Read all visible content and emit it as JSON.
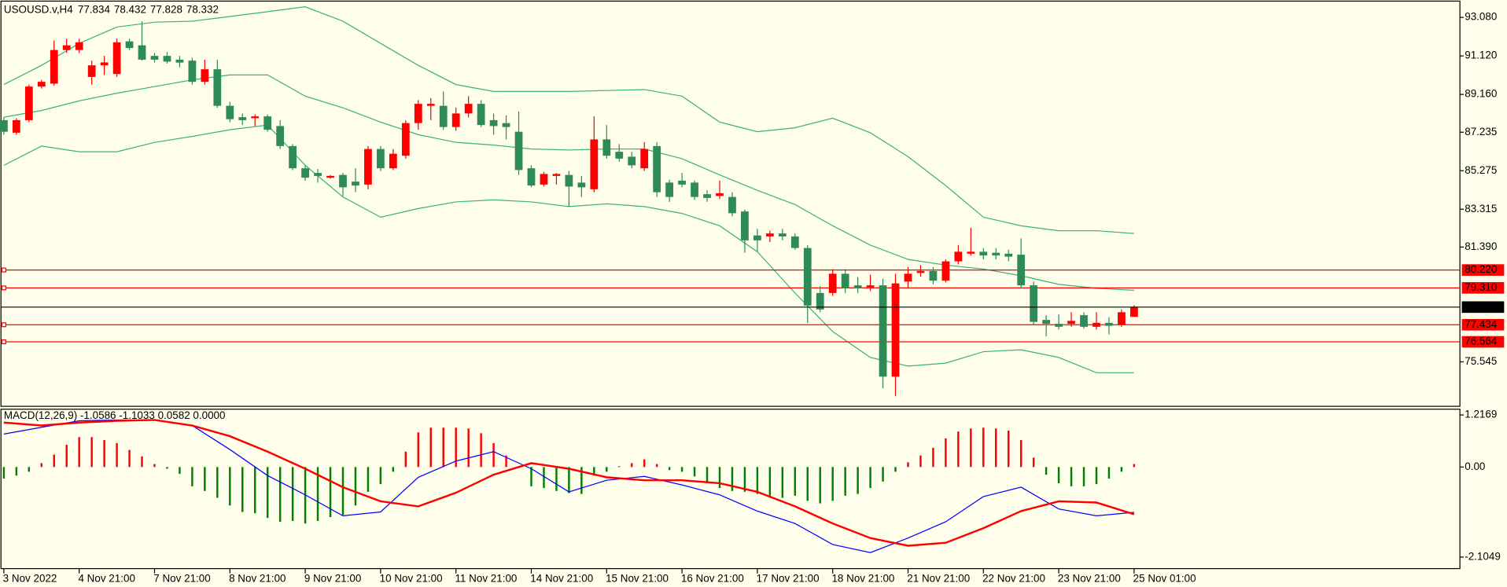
{
  "chart_data": [
    {
      "type": "candlestick",
      "title": "USOUSD.v,H4",
      "categories": [
        "3 Nov 2022",
        null,
        null,
        null,
        null,
        null,
        "4 Nov 21:00",
        null,
        null,
        null,
        null,
        null,
        "7 Nov 21:00",
        null,
        null,
        null,
        null,
        null,
        "8 Nov 21:00",
        null,
        null,
        null,
        null,
        null,
        "9 Nov 21:00",
        null,
        null,
        null,
        null,
        null,
        "10 Nov 21:00",
        null,
        null,
        null,
        null,
        null,
        "11 Nov 21:00",
        null,
        null,
        null,
        null,
        null,
        "14 Nov 21:00",
        null,
        null,
        null,
        null,
        null,
        "15 Nov 21:00",
        null,
        null,
        null,
        null,
        null,
        "16 Nov 21:00",
        null,
        null,
        null,
        null,
        null,
        "17 Nov 21:00",
        null,
        null,
        null,
        null,
        null,
        "18 Nov 21:00",
        null,
        null,
        null,
        null,
        null,
        "21 Nov 21:00",
        null,
        null,
        null,
        null,
        null,
        "22 Nov 21:00",
        null,
        null,
        null,
        null,
        null,
        "23 Nov 21:00",
        null,
        null,
        null,
        null,
        null,
        "25 Nov 01:00"
      ],
      "open": [
        87.85,
        87.21,
        87.85,
        89.56,
        89.71,
        91.42,
        91.42,
        90.05,
        90.64,
        90.2,
        91.86,
        91.66,
        91.12,
        91.12,
        90.93,
        90.88,
        89.8,
        90.44,
        88.58,
        88.0,
        87.95,
        88.04,
        87.55,
        86.53,
        85.4,
        85.16,
        84.92,
        85.06,
        84.72,
        84.57,
        86.38,
        85.4,
        86.04,
        87.7,
        88.58,
        88.58,
        87.5,
        88.19,
        88.68,
        87.85,
        87.7,
        87.26,
        85.4,
        84.57,
        85.01,
        85.06,
        84.67,
        84.33,
        86.87,
        86.24,
        85.99,
        85.4,
        86.53,
        84.67,
        84.77,
        84.67,
        84.08,
        83.99,
        83.94,
        83.2,
        81.98,
        81.93,
        82.08,
        81.93,
        81.34,
        79.05,
        79.05,
        80.03,
        79.44,
        79.34,
        79.44,
        74.79,
        79.63,
        80.07,
        80.17,
        79.68,
        80.66,
        81.05,
        81.15,
        81.1,
        81.05,
        81.0,
        79.44,
        77.68,
        77.48,
        77.48,
        77.92,
        77.33,
        77.53,
        77.43,
        77.834
      ],
      "high": [
        88.0,
        87.95,
        89.66,
        89.9,
        91.91,
        92.0,
        92.0,
        90.88,
        91.12,
        92.0,
        92.0,
        92.88,
        91.27,
        91.32,
        91.12,
        91.03,
        90.93,
        90.93,
        88.78,
        88.19,
        88.14,
        88.14,
        87.85,
        86.63,
        85.55,
        85.36,
        85.06,
        85.16,
        85.4,
        86.53,
        86.53,
        86.38,
        87.85,
        88.87,
        88.97,
        89.31,
        88.48,
        89.07,
        88.87,
        88.19,
        88.09,
        88.29,
        85.55,
        85.21,
        85.16,
        85.26,
        85.01,
        88.04,
        87.6,
        86.63,
        86.24,
        86.73,
        86.73,
        84.82,
        85.16,
        84.77,
        84.28,
        84.77,
        84.18,
        83.3,
        82.32,
        82.22,
        82.32,
        82.08,
        81.49,
        79.39,
        80.27,
        80.27,
        79.86,
        79.98,
        79.78,
        80.03,
        80.37,
        80.47,
        80.37,
        80.76,
        81.49,
        82.37,
        81.34,
        81.34,
        81.25,
        81.83,
        79.63,
        77.92,
        77.97,
        78.07,
        78.07,
        78.07,
        77.82,
        78.21,
        78.432
      ],
      "low": [
        87.11,
        87.11,
        87.75,
        89.46,
        89.61,
        91.27,
        91.27,
        89.66,
        90.15,
        90.05,
        91.42,
        90.88,
        90.78,
        90.73,
        90.54,
        89.66,
        89.66,
        88.48,
        87.75,
        87.6,
        87.55,
        87.26,
        86.38,
        85.31,
        84.77,
        84.67,
        84.87,
        83.99,
        84.18,
        84.33,
        85.26,
        85.31,
        85.89,
        87.36,
        87.85,
        87.36,
        87.31,
        87.99,
        87.5,
        87.11,
        86.87,
        85.06,
        84.43,
        84.47,
        84.57,
        83.45,
        83.94,
        84.18,
        85.89,
        85.74,
        85.4,
        85.26,
        83.94,
        83.69,
        84.43,
        83.79,
        83.69,
        83.84,
        82.96,
        81.1,
        81.15,
        81.64,
        81.73,
        81.25,
        77.53,
        78.07,
        78.9,
        79.05,
        79.05,
        79.15,
        74.2,
        73.81,
        79.29,
        79.88,
        79.49,
        79.59,
        80.51,
        80.96,
        80.76,
        80.76,
        80.66,
        79.29,
        77.43,
        76.85,
        77.19,
        77.33,
        77.24,
        77.19,
        76.94,
        77.33,
        77.828
      ],
      "close": [
        87.26,
        87.85,
        89.56,
        89.8,
        91.42,
        91.66,
        91.81,
        90.64,
        90.79,
        91.81,
        91.52,
        90.93,
        90.93,
        90.83,
        90.78,
        89.8,
        90.44,
        88.58,
        87.9,
        87.85,
        88.04,
        87.36,
        86.53,
        85.4,
        84.92,
        85.01,
        85.01,
        84.43,
        84.52,
        86.38,
        85.4,
        86.14,
        87.7,
        88.68,
        88.68,
        87.5,
        88.19,
        88.68,
        87.6,
        87.55,
        87.5,
        85.31,
        84.52,
        85.11,
        85.11,
        84.47,
        84.43,
        86.87,
        86.04,
        85.89,
        85.55,
        86.38,
        84.18,
        83.94,
        84.57,
        83.94,
        83.89,
        84.13,
        83.11,
        81.73,
        81.73,
        82.08,
        81.93,
        81.34,
        78.41,
        78.21,
        80.03,
        79.29,
        79.29,
        79.44,
        74.79,
        79.54,
        80.03,
        80.17,
        79.68,
        80.66,
        81.15,
        81.15,
        80.96,
        80.96,
        80.9,
        79.44,
        77.58,
        77.48,
        77.33,
        77.63,
        77.33,
        77.53,
        77.38,
        78.07,
        78.332
      ],
      "up_color": "#ff0000",
      "down_color": "#2e8b57",
      "x": [
        0,
        3,
        6,
        9,
        12,
        15,
        18,
        21,
        24,
        27,
        30,
        33,
        36,
        39,
        42,
        45,
        48,
        51,
        54,
        57,
        60,
        63,
        66,
        69,
        72,
        75,
        78,
        81,
        84,
        87,
        90
      ],
      "series": [
        {
          "color": "#3cb371",
          "values": [
            89.66,
            90.64,
            91.76,
            92.59,
            92.84,
            92.89,
            93.13,
            93.37,
            93.62,
            92.89,
            91.76,
            90.64,
            89.66,
            89.31,
            89.31,
            89.31,
            89.36,
            89.41,
            89.07,
            87.75,
            87.26,
            87.46,
            87.95,
            87.21,
            85.99,
            84.52,
            82.91,
            82.47,
            82.22,
            82.22,
            82.08
          ]
        },
        {
          "color": "#3cb371",
          "values": [
            88.0,
            88.34,
            88.83,
            89.22,
            89.56,
            89.9,
            90.15,
            90.15,
            89.07,
            88.48,
            87.75,
            87.11,
            86.72,
            86.58,
            86.38,
            86.33,
            86.38,
            86.38,
            85.89,
            85.06,
            84.28,
            83.55,
            82.47,
            81.49,
            80.76,
            80.47,
            80.27,
            79.93,
            79.49,
            79.29,
            79.19
          ]
        },
        {
          "color": "#3cb371",
          "values": [
            85.55,
            86.53,
            86.24,
            86.24,
            86.72,
            87.02,
            87.36,
            87.6,
            85.55,
            83.94,
            82.91,
            83.35,
            83.69,
            83.79,
            83.69,
            83.45,
            83.59,
            83.45,
            83.1,
            82.47,
            81.15,
            79.05,
            77.09,
            75.77,
            75.33,
            75.48,
            76.06,
            76.16,
            75.77,
            74.99,
            74.99
          ]
        }
      ],
      "hlines": [
        {
          "value": 80.22,
          "label": "80.220"
        },
        {
          "value": 79.31,
          "label": "79.310"
        },
        77.434,
        76.564
      ],
      "hline_color": "#ff0000",
      "ylim": [
        73.28,
        93.91
      ],
      "yticks": [
        {
          "value": 93.08,
          "label": "93.080"
        },
        {
          "value": 91.12,
          "label": "91.120"
        },
        {
          "value": 89.16,
          "label": "89.160"
        },
        87.235,
        85.275,
        83.315,
        {
          "value": 81.39,
          "label": "81.390"
        },
        75.545
      ],
      "grid": false
    },
    {
      "type": "macd",
      "title": "MACD(12,26,9) -1.0586 -1.1033 0.0582 0.0000",
      "x": [
        0,
        3,
        6,
        9,
        12,
        15,
        18,
        21,
        24,
        27,
        30,
        33,
        36,
        39,
        42,
        45,
        48,
        51,
        54,
        57,
        60,
        63,
        66,
        69,
        72,
        75,
        78,
        81,
        84,
        87,
        90
      ],
      "series": [
        {
          "color": "#0000ff",
          "values": [
            0.77,
            0.93,
            1.08,
            1.1,
            1.1,
            0.97,
            0.41,
            -0.2,
            -0.65,
            -1.14,
            -1.05,
            -0.24,
            0.14,
            0.36,
            -0.04,
            -0.58,
            -0.31,
            -0.22,
            -0.42,
            -0.65,
            -1.03,
            -1.32,
            -1.81,
            -2.0,
            -1.66,
            -1.28,
            -0.69,
            -0.47,
            -0.98,
            -1.14,
            -1.0586
          ]
        },
        {
          "color": "#ff0000",
          "values": [
            1.04,
            0.97,
            1.04,
            1.08,
            1.1,
            0.97,
            0.72,
            0.36,
            -0.04,
            -0.47,
            -0.8,
            -0.92,
            -0.6,
            -0.18,
            0.09,
            -0.04,
            -0.24,
            -0.31,
            -0.31,
            -0.38,
            -0.58,
            -0.92,
            -1.32,
            -1.66,
            -1.84,
            -1.77,
            -1.43,
            -1.03,
            -0.8,
            -0.83,
            -1.1033
          ]
        }
      ],
      "histogram": {
        "values": [
          -0.27,
          -0.2,
          -0.11,
          0.09,
          0.29,
          0.52,
          0.7,
          0.7,
          0.63,
          0.56,
          0.4,
          0.25,
          0.07,
          -0.04,
          -0.16,
          -0.45,
          -0.56,
          -0.72,
          -0.9,
          -1.05,
          -1.08,
          -1.19,
          -1.28,
          -1.26,
          -1.32,
          -1.26,
          -1.17,
          -1.12,
          -0.9,
          -0.58,
          -0.4,
          -0.11,
          0.36,
          0.81,
          0.92,
          0.92,
          0.92,
          0.9,
          0.79,
          0.56,
          0.27,
          0.02,
          -0.45,
          -0.49,
          -0.56,
          -0.61,
          -0.63,
          -0.2,
          -0.11,
          0.02,
          0.09,
          0.18,
          0.07,
          -0.07,
          -0.11,
          -0.22,
          -0.34,
          -0.49,
          -0.56,
          -0.58,
          -0.63,
          -0.67,
          -0.72,
          -0.67,
          -0.79,
          -0.85,
          -0.79,
          -0.67,
          -0.63,
          -0.49,
          -0.34,
          -0.11,
          0.11,
          0.27,
          0.45,
          0.67,
          0.83,
          0.9,
          0.92,
          0.9,
          0.85,
          0.63,
          0.22,
          -0.18,
          -0.38,
          -0.45,
          -0.45,
          -0.4,
          -0.27,
          -0.11,
          0.07
        ],
        "up_color": "#ff0000",
        "down_color": "#008000"
      },
      "ylim": [
        -2.1049,
        1.2169
      ],
      "yticks": [
        1.2169,
        {
          "value": 0,
          "label": "0.00"
        },
        -2.1049
      ],
      "grid": false
    }
  ]
}
